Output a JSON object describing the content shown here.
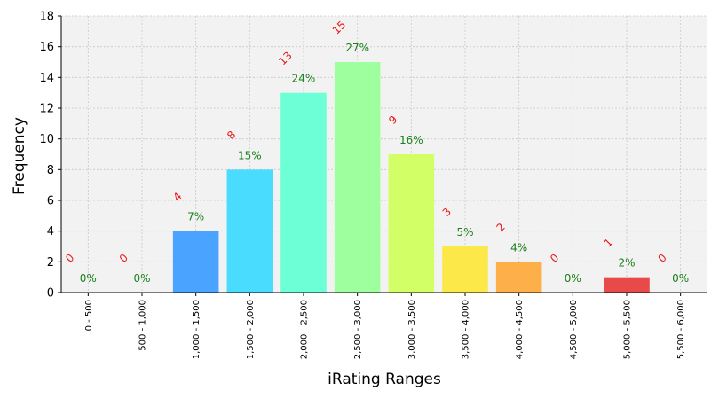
{
  "chart_data": {
    "type": "bar",
    "title": "",
    "xlabel": "iRating Ranges",
    "ylabel": "Frequency",
    "ylim": [
      0,
      18
    ],
    "yticks": [
      0,
      2,
      4,
      6,
      8,
      10,
      12,
      14,
      16,
      18
    ],
    "grid": true,
    "categories": [
      "0 - 500",
      "500 - 1,000",
      "1,000 - 1,500",
      "1,500 - 2,000",
      "2,000 - 2,500",
      "2,500 - 3,000",
      "3,000 - 3,500",
      "3,500 - 4,000",
      "4,000 - 4,500",
      "4,500 - 5,000",
      "5,000 - 5,500",
      "5,500 - 6,000"
    ],
    "values": [
      0,
      0,
      4,
      8,
      13,
      15,
      9,
      3,
      2,
      0,
      1,
      0
    ],
    "count_labels": [
      "0",
      "0",
      "4",
      "8",
      "13",
      "15",
      "9",
      "3",
      "2",
      "0",
      "1",
      "0"
    ],
    "percent_labels": [
      "0%",
      "0%",
      "7%",
      "15%",
      "24%",
      "27%",
      "16%",
      "5%",
      "4%",
      "0%",
      "2%",
      "0%"
    ],
    "bar_colors": [
      "#3f98ff",
      "#3f98ff",
      "#4aa3ff",
      "#4adcff",
      "#6dffd6",
      "#9dff9d",
      "#d3ff66",
      "#fde84a",
      "#fdb04a",
      "#fd7a4a",
      "#e84a4a",
      "#e84a4a"
    ],
    "count_label_color": "#e8191c",
    "percent_label_color": "#1a7f1a",
    "plot_background": "#f2f2f2"
  }
}
